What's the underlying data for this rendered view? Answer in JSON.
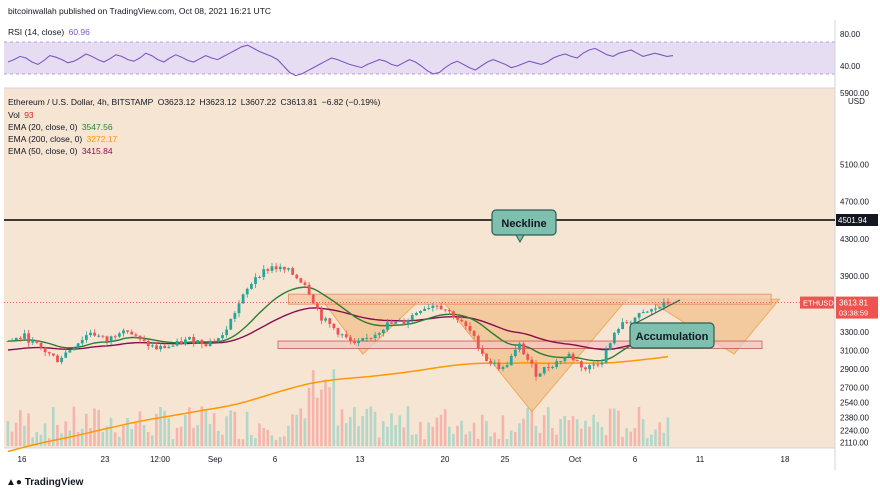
{
  "header": {
    "publisher": "bitcoinwallah published on TradingView.com, Oct 08, 2021 16:21 UTC"
  },
  "rsi": {
    "label": "RSI (14, close)",
    "value": "60.96",
    "color": "#7e57c2",
    "band_color": "#e1d5f0",
    "levels": [
      "80.00",
      "40.00"
    ],
    "series": [
      55,
      58,
      62,
      60,
      55,
      52,
      57,
      63,
      61,
      58,
      54,
      56,
      60,
      65,
      62,
      58,
      55,
      59,
      64,
      62,
      58,
      56,
      60,
      66,
      63,
      58,
      55,
      60,
      64,
      61,
      57,
      55,
      59,
      63,
      60,
      58,
      62,
      66,
      70,
      74,
      76,
      72,
      68,
      65,
      62,
      58,
      50,
      42,
      38,
      40,
      44,
      48,
      52,
      56,
      60,
      58,
      55,
      52,
      50,
      48,
      52,
      55,
      58,
      56,
      52,
      50,
      54,
      58,
      55,
      50,
      44,
      40,
      42,
      48,
      53,
      56,
      52,
      48,
      45,
      50,
      55,
      58,
      55,
      52,
      48,
      50,
      53,
      56,
      54,
      52,
      55,
      60,
      63,
      65,
      62,
      60,
      66,
      70,
      72,
      68,
      64,
      62,
      66,
      68,
      70,
      66,
      62,
      64,
      66,
      64,
      62,
      63
    ]
  },
  "main": {
    "title": "Ethereum / U.S. Dollar, 4h, BITSTAMP",
    "ohlc": {
      "o": "O3623.12",
      "h": "H3623.12",
      "l": "L3607.22",
      "c": "C3613.81",
      "chg": "−6.82 (−0.19%)"
    },
    "vol_label": "Vol",
    "vol_value": "93",
    "ema20": {
      "label": "EMA (20, close, 0)",
      "value": "3547.56",
      "color": "#2e7d32"
    },
    "ema200": {
      "label": "EMA (200, close, 0)",
      "value": "3272.17",
      "color": "#ff9800"
    },
    "ema50": {
      "label": "EMA (50, close, 0)",
      "value": "3415.84",
      "color": "#880e4f"
    },
    "currency_top": "5900.00",
    "currency": "USD",
    "symbol_tag": "ETHUSD",
    "price_tag": "3613.81",
    "countdown": "03:38:59",
    "level_tag": "4501.94",
    "bg_color": "#f6e5d3",
    "price_axis": [
      "5100.00",
      "4700.00",
      "4300.00",
      "3900.00",
      "3500.00",
      "3300.00",
      "3100.00",
      "2900.00",
      "2700.00",
      "2540.00",
      "2380.00",
      "2240.00",
      "2110.00"
    ],
    "time_axis": [
      "16",
      "23",
      "12:00",
      "Sep",
      "6",
      "13",
      "20",
      "25",
      "Oct",
      "6",
      "11",
      "18"
    ],
    "callout_neckline": "Neckline",
    "callout_accumulation": "Accumulation"
  },
  "footer": {
    "logo": "TradingView"
  },
  "chart_data": {
    "type": "candlestick",
    "symbol": "ETHUSD",
    "title": "Ethereum / U.S. Dollar, 4h, BITSTAMP",
    "ylim": [
      2050,
      5900
    ],
    "horizontal_level": 4501.94,
    "neckline": 3650,
    "accumulation_zone": [
      3120,
      3200
    ],
    "last_price": 3613.81,
    "ema_last": {
      "ema20": 3547.56,
      "ema200": 3272.17,
      "ema50": 3415.84
    },
    "close_path": [
      [
        0,
        3200
      ],
      [
        4,
        3250
      ],
      [
        8,
        3120
      ],
      [
        12,
        3000
      ],
      [
        16,
        3150
      ],
      [
        20,
        3300
      ],
      [
        24,
        3200
      ],
      [
        28,
        3350
      ],
      [
        32,
        3200
      ],
      [
        36,
        3120
      ],
      [
        40,
        3150
      ],
      [
        44,
        3220
      ],
      [
        48,
        3180
      ],
      [
        52,
        3250
      ],
      [
        56,
        3600
      ],
      [
        60,
        3900
      ],
      [
        64,
        4000
      ],
      [
        68,
        3950
      ],
      [
        72,
        3820
      ],
      [
        76,
        3450
      ],
      [
        80,
        3300
      ],
      [
        84,
        3150
      ],
      [
        88,
        3250
      ],
      [
        92,
        3380
      ],
      [
        96,
        3400
      ],
      [
        100,
        3550
      ],
      [
        104,
        3600
      ],
      [
        108,
        3480
      ],
      [
        112,
        3300
      ],
      [
        116,
        3000
      ],
      [
        120,
        2900
      ],
      [
        124,
        3150
      ],
      [
        128,
        2850
      ],
      [
        132,
        2950
      ],
      [
        136,
        3050
      ],
      [
        140,
        2900
      ],
      [
        144,
        3000
      ],
      [
        148,
        3350
      ],
      [
        152,
        3450
      ],
      [
        156,
        3530
      ],
      [
        160,
        3613
      ]
    ]
  }
}
